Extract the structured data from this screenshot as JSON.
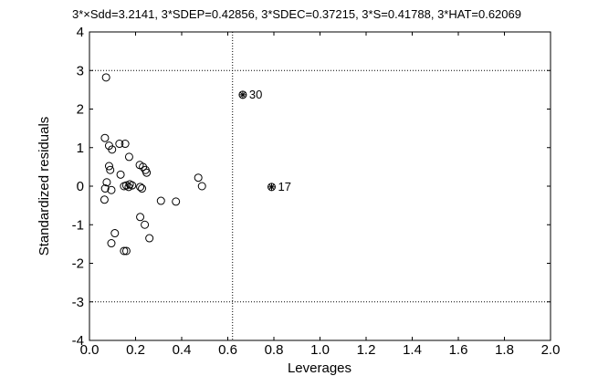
{
  "chart_data": {
    "type": "scatter",
    "title": "3*×Sdd=3.2141, 3*SDEP=0.42856, 3*SDEC=0.37215, 3*S=0.41788, 3*HAT=0.62069",
    "xlabel": "Leverages",
    "ylabel": "Standardized residuals",
    "xlim": [
      0,
      2
    ],
    "ylim": [
      -4,
      4
    ],
    "xticks": [
      "0.0",
      "0.2",
      "0.4",
      "0.6",
      "0.8",
      "1.0",
      "1.2",
      "1.4",
      "1.6",
      "1.8",
      "2.0"
    ],
    "xtick_values": [
      0,
      0.2,
      0.4,
      0.6,
      0.8,
      1.0,
      1.2,
      1.4,
      1.6,
      1.8,
      2.0
    ],
    "yticks": [
      "-4",
      "-3",
      "-2",
      "-1",
      "0",
      "1",
      "2",
      "3",
      "4"
    ],
    "ytick_values": [
      -4,
      -3,
      -2,
      -1,
      0,
      1,
      2,
      3,
      4
    ],
    "grid": false,
    "reference_lines": {
      "horizontal": [
        3,
        -3
      ],
      "vertical": [
        0.62069
      ],
      "style": "dotted"
    },
    "series": [
      {
        "marker": "open-circle",
        "x": [
          0.072,
          0.067,
          0.085,
          0.098,
          0.13,
          0.155,
          0.172,
          0.218,
          0.232,
          0.243,
          0.085,
          0.09,
          0.135,
          0.175,
          0.248,
          0.472,
          0.075,
          0.068,
          0.095,
          0.16,
          0.17,
          0.185,
          0.15,
          0.22,
          0.228,
          0.488,
          0.065,
          0.31,
          0.375,
          0.22,
          0.24,
          0.11,
          0.26,
          0.095,
          0.15,
          0.16
        ],
        "y": [
          2.82,
          1.25,
          1.05,
          0.95,
          1.1,
          1.1,
          0.76,
          0.55,
          0.5,
          0.42,
          0.52,
          0.42,
          0.3,
          0.05,
          0.35,
          0.22,
          0.1,
          -0.06,
          -0.1,
          0.02,
          -0.02,
          0.02,
          0.0,
          -0.02,
          -0.06,
          0.0,
          -0.35,
          -0.38,
          -0.4,
          -0.8,
          -1.0,
          -1.22,
          -1.35,
          -1.48,
          -1.68,
          -1.68
        ]
      },
      {
        "marker": "asterisk-circle",
        "x": [
          0.665,
          0.79
        ],
        "y": [
          2.37,
          -0.02
        ]
      }
    ],
    "annotations": [
      {
        "text": "30",
        "x": 0.665,
        "y": 2.37
      },
      {
        "text": "17",
        "x": 0.79,
        "y": -0.02
      }
    ]
  }
}
